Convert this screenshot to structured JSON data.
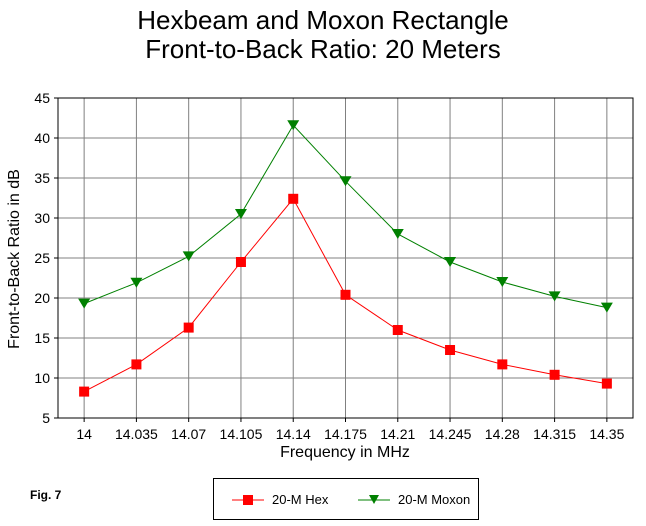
{
  "chart_data": {
    "type": "line",
    "title_line1": "Hexbeam and Moxon Rectangle",
    "title_line2": "Front-to-Back Ratio:  20 Meters",
    "xlabel": "Frequency in MHz",
    "ylabel": "Front-to-Back Ratio in dB",
    "categories": [
      "14",
      "14.035",
      "14.07",
      "14.105",
      "14.14",
      "14.175",
      "14.21",
      "14.245",
      "14.28",
      "14.315",
      "14.35"
    ],
    "ylim": [
      5,
      45
    ],
    "yticks": [
      5,
      10,
      15,
      20,
      25,
      30,
      35,
      40,
      45
    ],
    "grid": true,
    "legend_position": "bottom",
    "series": [
      {
        "name": "20-M Hex",
        "color": "#ff0000",
        "marker": "square",
        "values": [
          8.3,
          11.7,
          16.3,
          24.5,
          32.4,
          20.4,
          16.0,
          13.5,
          11.7,
          10.4,
          9.3
        ]
      },
      {
        "name": "20-M Moxon",
        "color": "#008000",
        "marker": "triangle-down",
        "values": [
          19.3,
          21.9,
          25.2,
          30.5,
          41.6,
          34.6,
          28.0,
          24.5,
          22.0,
          20.2,
          18.8
        ]
      }
    ]
  },
  "figure_label": "Fig. 7"
}
